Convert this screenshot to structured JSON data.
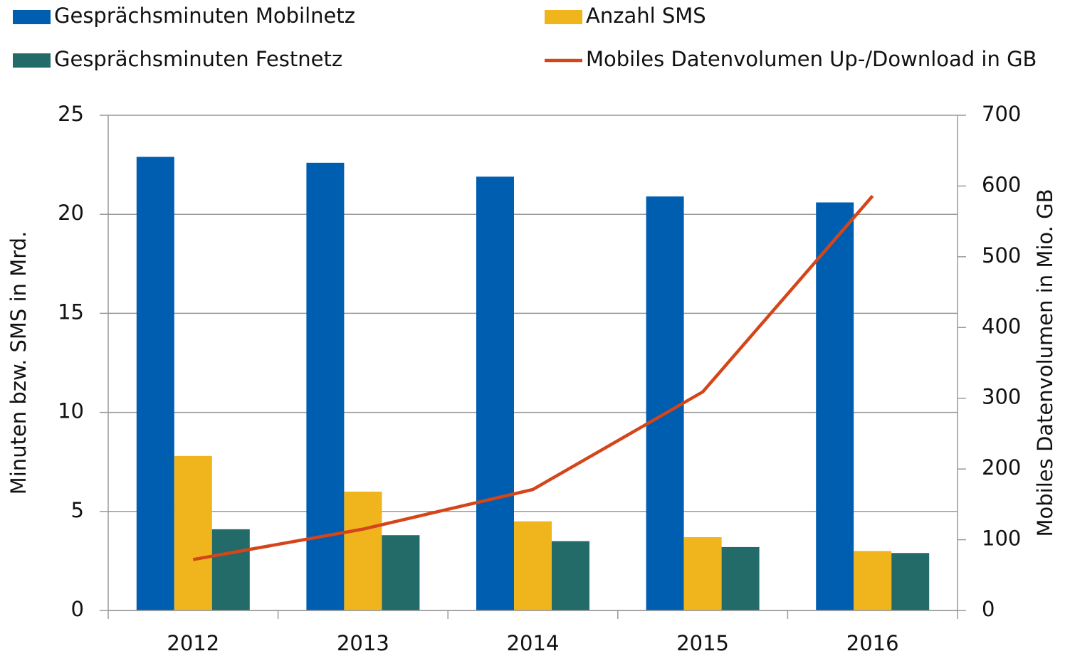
{
  "chart_data": {
    "type": "bar",
    "categories": [
      "2012",
      "2013",
      "2014",
      "2015",
      "2016"
    ],
    "series": [
      {
        "name": "Gesprächsminuten Mobilnetz",
        "color": "#005eb0",
        "values": [
          22.9,
          22.6,
          21.9,
          20.9,
          20.6
        ]
      },
      {
        "name": "Anzahl SMS",
        "color": "#f0b41c",
        "values": [
          7.8,
          6.0,
          4.5,
          3.7,
          3.0
        ]
      },
      {
        "name": "Gesprächsminuten Festnetz",
        "color": "#226b68",
        "values": [
          4.1,
          3.8,
          3.5,
          3.2,
          2.9
        ]
      },
      {
        "name": "Mobiles Datenvolumen Up-/Download in GB",
        "color": "#d4451a",
        "type": "line",
        "axis": "y2",
        "values": [
          72,
          115,
          171,
          309,
          586
        ]
      }
    ],
    "y_label": "Minuten bzw. SMS in Mrd.",
    "y2_label": "Mobiles Datenvolumen in Mio. GB",
    "ylim": [
      0,
      25
    ],
    "yticks": [
      0,
      5,
      10,
      15,
      20,
      25
    ],
    "y2lim": [
      0,
      700
    ],
    "y2ticks": [
      0,
      100,
      200,
      300,
      400,
      500,
      600,
      700
    ],
    "grid": true
  }
}
